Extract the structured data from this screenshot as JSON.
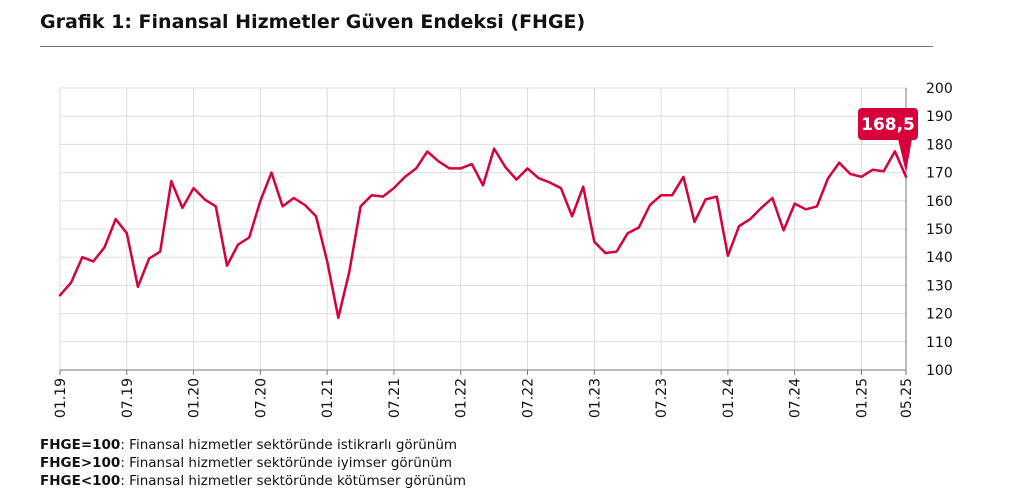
{
  "title": "Grafik 1: Finansal Hizmetler Güven Endeksi (FHGE)",
  "chart_data": {
    "type": "line",
    "title": "Grafik 1: Finansal Hizmetler Güven Endeksi (FHGE)",
    "xlabel": "",
    "ylabel": "",
    "ylim": [
      100,
      200
    ],
    "yticks": [
      100,
      110,
      120,
      130,
      140,
      150,
      160,
      170,
      180,
      190,
      200
    ],
    "grid": true,
    "line_color": "#d6003a",
    "x_tick_labels": [
      "01.19",
      "07.19",
      "01.20",
      "07.20",
      "01.21",
      "07.21",
      "01.22",
      "07.22",
      "01.23",
      "07.23",
      "01.24",
      "07.24",
      "01.25",
      "05.25"
    ],
    "x_tick_index": [
      0,
      6,
      12,
      18,
      24,
      30,
      36,
      42,
      48,
      54,
      60,
      66,
      72,
      76
    ],
    "callout": {
      "label": "168,5",
      "index": 76,
      "color": "#d6003a"
    },
    "x": [
      "01.19",
      "02.19",
      "03.19",
      "04.19",
      "05.19",
      "06.19",
      "07.19",
      "08.19",
      "09.19",
      "10.19",
      "11.19",
      "12.19",
      "01.20",
      "02.20",
      "03.20",
      "04.20",
      "05.20",
      "06.20",
      "07.20",
      "08.20",
      "09.20",
      "10.20",
      "11.20",
      "12.20",
      "01.21",
      "02.21",
      "03.21",
      "04.21",
      "05.21",
      "06.21",
      "07.21",
      "08.21",
      "09.21",
      "10.21",
      "11.21",
      "12.21",
      "01.22",
      "02.22",
      "03.22",
      "04.22",
      "05.22",
      "06.22",
      "07.22",
      "08.22",
      "09.22",
      "10.22",
      "11.22",
      "12.22",
      "01.23",
      "02.23",
      "03.23",
      "04.23",
      "05.23",
      "06.23",
      "07.23",
      "08.23",
      "09.23",
      "10.23",
      "11.23",
      "12.23",
      "01.24",
      "02.24",
      "03.24",
      "04.24",
      "05.24",
      "06.24",
      "07.24",
      "08.24",
      "09.24",
      "10.24",
      "11.24",
      "12.24",
      "01.25",
      "02.25",
      "03.25",
      "04.25",
      "05.25"
    ],
    "series": [
      {
        "name": "FHGE",
        "values": [
          126.5,
          131,
          140,
          138.5,
          143.5,
          153.5,
          148.5,
          129.5,
          139.5,
          142,
          167,
          157.5,
          164.5,
          160.5,
          158,
          137,
          144.5,
          147,
          160,
          170,
          158,
          161,
          158.5,
          154.5,
          138.5,
          118.5,
          135,
          158,
          162,
          161.5,
          164.5,
          168.5,
          171.5,
          177.5,
          174,
          171.5,
          171.5,
          173,
          165.5,
          178.5,
          172,
          167.5,
          171.5,
          168,
          166.5,
          164.5,
          154.5,
          165,
          145.5,
          141.5,
          142,
          148.5,
          150.5,
          158.5,
          162,
          162,
          168.5,
          152.5,
          160.5,
          161.5,
          140.5,
          151,
          153.5,
          157.5,
          161,
          149.5,
          159,
          157,
          158,
          168,
          173.5,
          169.5,
          168.5,
          171,
          170.5,
          177.5,
          168.5
        ]
      }
    ]
  },
  "legend": [
    {
      "term": "FHGE=100",
      "text": ": Finansal hizmetler sektöründe istikrarlı görünüm"
    },
    {
      "term": "FHGE>100",
      "text": ": Finansal hizmetler sektöründe iyimser görünüm"
    },
    {
      "term": "FHGE<100",
      "text": ": Finansal hizmetler sektöründe kötümser görünüm"
    }
  ]
}
